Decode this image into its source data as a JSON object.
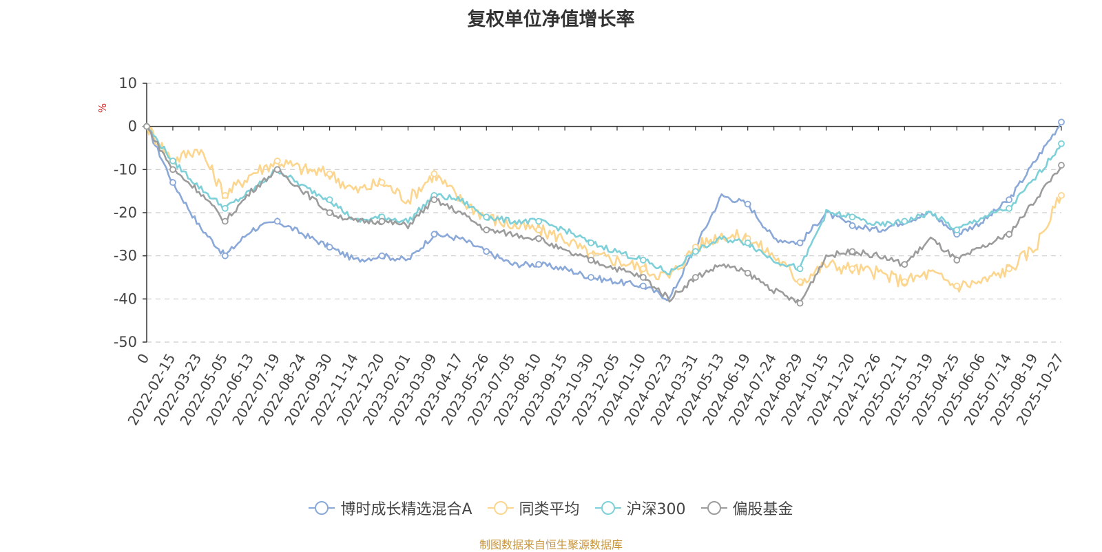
{
  "title": "复权单位净值增长率",
  "footer": "制图数据来自恒生聚源数据库",
  "chart_data": {
    "type": "line",
    "title": "复权单位净值增长率",
    "ylabel": "%",
    "ylim": [
      -50,
      10
    ],
    "yticks": [
      10,
      0,
      -10,
      -20,
      -30,
      -40,
      -50
    ],
    "grid": true,
    "legend_position": "bottom-center",
    "x_tick_labels": [
      "0",
      "2022-02-15",
      "2022-03-23",
      "2022-05-05",
      "2022-06-13",
      "2022-07-19",
      "2022-08-24",
      "2022-09-30",
      "2022-11-14",
      "2022-12-20",
      "2023-02-01",
      "2023-03-09",
      "2023-04-17",
      "2023-05-26",
      "2023-07-05",
      "2023-08-10",
      "2023-09-15",
      "2023-10-30",
      "2023-12-05",
      "2024-01-10",
      "2024-02-23",
      "2024-03-31",
      "2024-05-13",
      "2024-06-19",
      "2024-07-24",
      "2024-08-29",
      "2024-10-15",
      "2024-11-20",
      "2024-12-26",
      "2025-02-11",
      "2025-03-19",
      "2025-04-25",
      "2025-06-06",
      "2025-07-14",
      "2025-08-19",
      "2025-10-27"
    ],
    "series": [
      {
        "name": "博时成长精选混合A",
        "color": "#8aa8d8",
        "values": [
          0,
          -13,
          -23,
          -30,
          -24,
          -22,
          -25,
          -28,
          -31,
          -30,
          -31,
          -25,
          -26,
          -29,
          -32,
          -32,
          -33,
          -35,
          -36,
          -37,
          -40,
          -28,
          -16,
          -18,
          -26,
          -27,
          -20,
          -23,
          -24,
          -22,
          -20,
          -25,
          -22,
          -17,
          -8,
          1
        ]
      },
      {
        "name": "同类平均",
        "color": "#fcd68f",
        "values": [
          0,
          -8,
          -5,
          -16,
          -11,
          -8,
          -10,
          -11,
          -15,
          -13,
          -17,
          -11,
          -17,
          -21,
          -23,
          -24,
          -26,
          -30,
          -31,
          -33,
          -35,
          -28,
          -25,
          -26,
          -30,
          -36,
          -32,
          -33,
          -34,
          -36,
          -34,
          -37,
          -36,
          -33,
          -28,
          -16
        ]
      },
      {
        "name": "沪深300",
        "color": "#7ed0d8",
        "values": [
          0,
          -8,
          -14,
          -19,
          -15,
          -10,
          -14,
          -17,
          -22,
          -21,
          -22,
          -16,
          -17,
          -21,
          -22,
          -22,
          -24,
          -27,
          -29,
          -31,
          -34,
          -29,
          -26,
          -27,
          -31,
          -33,
          -20,
          -21,
          -23,
          -22,
          -20,
          -24,
          -21,
          -19,
          -12,
          -4
        ]
      },
      {
        "name": "偏股基金",
        "color": "#9c9c9c",
        "values": [
          0,
          -10,
          -15,
          -22,
          -15,
          -10,
          -15,
          -20,
          -22,
          -22,
          -23,
          -17,
          -20,
          -24,
          -25,
          -26,
          -29,
          -31,
          -33,
          -35,
          -40,
          -35,
          -32,
          -34,
          -38,
          -41,
          -30,
          -29,
          -30,
          -32,
          -26,
          -31,
          -28,
          -25,
          -17,
          -9
        ]
      }
    ]
  },
  "legend": [
    {
      "label": "博时成长精选混合A",
      "color": "#8aa8d8"
    },
    {
      "label": "同类平均",
      "color": "#fcd68f"
    },
    {
      "label": "沪深300",
      "color": "#7ed0d8"
    },
    {
      "label": "偏股基金",
      "color": "#9c9c9c"
    }
  ]
}
